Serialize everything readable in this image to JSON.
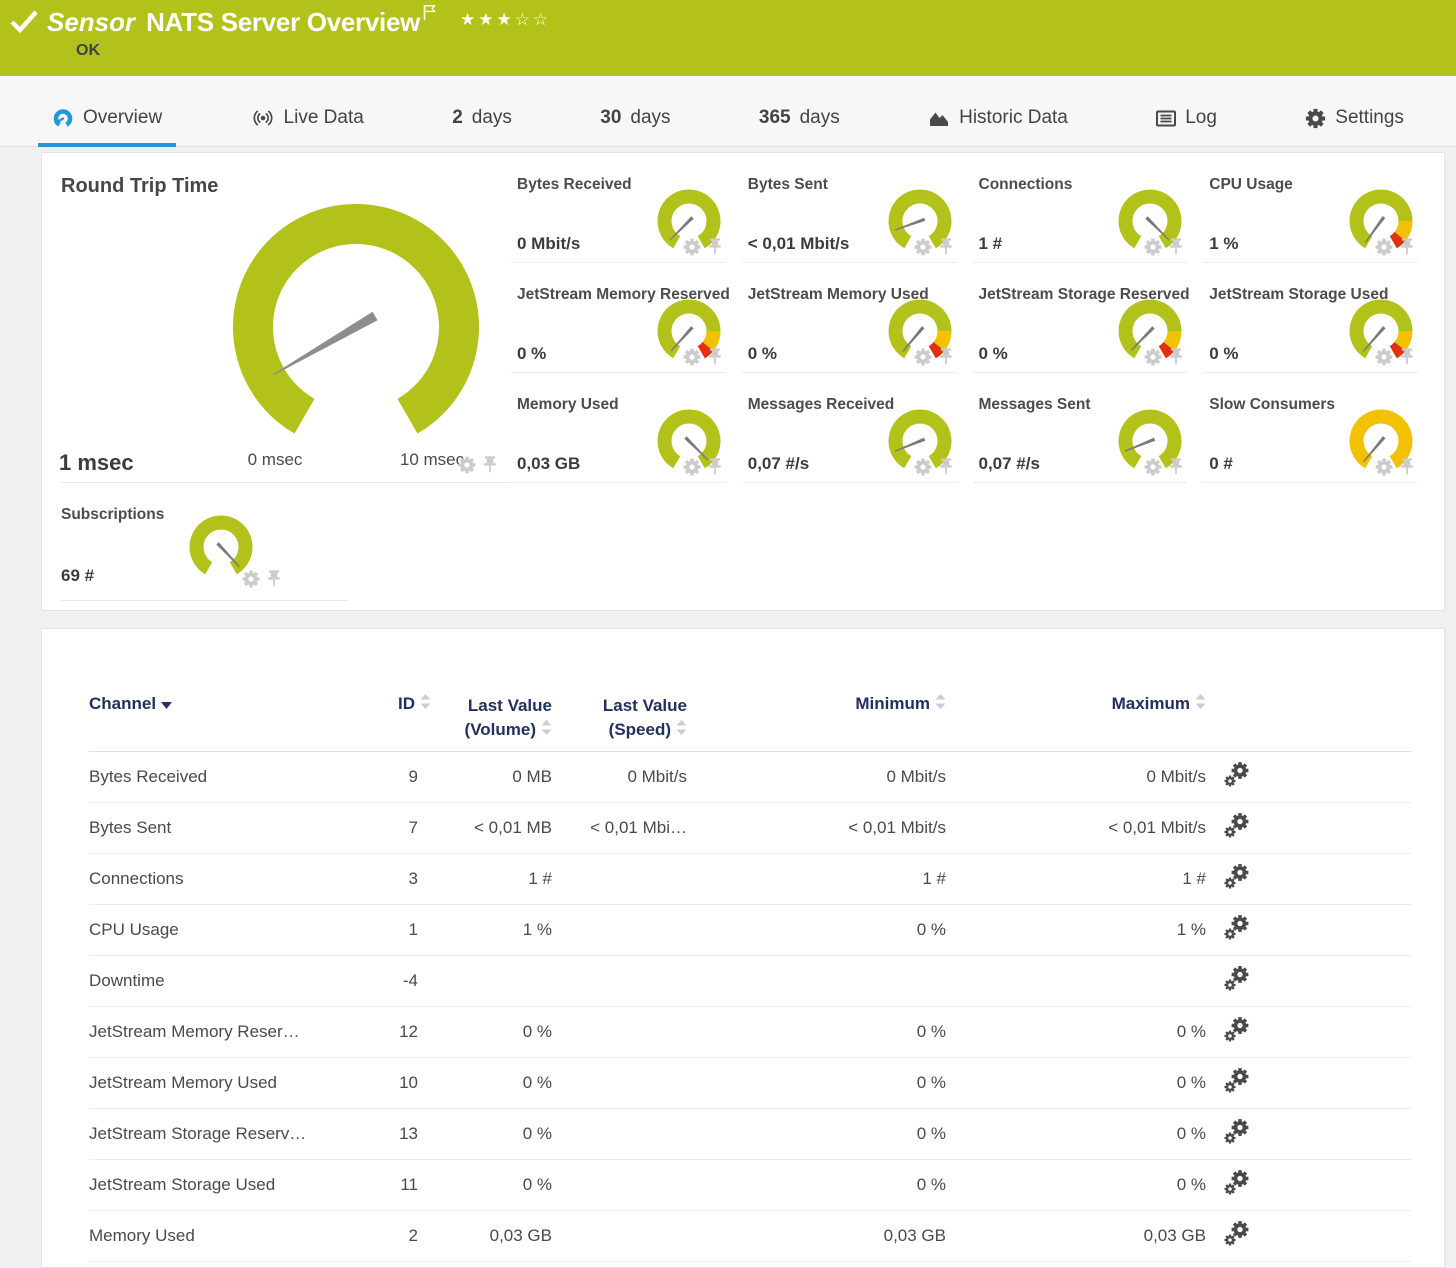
{
  "header": {
    "kind": "Sensor",
    "title": "NATS Server Overview",
    "stars": "★★★☆☆",
    "status": "OK"
  },
  "tabs": [
    {
      "id": "overview",
      "label": "Overview",
      "icon": "gauge-icon",
      "active": true
    },
    {
      "id": "live-data",
      "label": "Live Data",
      "icon": "broadcast-icon",
      "active": false
    },
    {
      "id": "2-days",
      "prefix": "2",
      "label": "days",
      "active": false
    },
    {
      "id": "30-days",
      "prefix": "30",
      "label": "days",
      "active": false
    },
    {
      "id": "365-days",
      "prefix": "365",
      "label": "days",
      "active": false
    },
    {
      "id": "historic-data",
      "label": "Historic Data",
      "icon": "area-chart-icon",
      "active": false
    },
    {
      "id": "log",
      "label": "Log",
      "icon": "log-icon",
      "active": false
    },
    {
      "id": "settings",
      "label": "Settings",
      "icon": "gear-icon",
      "active": false
    }
  ],
  "colors": {
    "brand_green": "#b2c21a",
    "tab_active_blue": "#1f9ad7",
    "warn_amber": "#f1c102",
    "alert_red": "#e03113",
    "needle_gray": "#7f7f7f"
  },
  "gauge_schemes": {
    "green": [
      {
        "color": "#b2c21a",
        "from": 0,
        "to": 1
      }
    ],
    "warn": [
      {
        "color": "#b2c21a",
        "from": 0,
        "to": 0.8
      },
      {
        "color": "#f1c102",
        "from": 0.8,
        "to": 0.93
      },
      {
        "color": "#e03113",
        "from": 0.93,
        "to": 1
      }
    ],
    "amber": [
      {
        "color": "#f1c102",
        "from": 0,
        "to": 1
      }
    ]
  },
  "gauge_panel": {
    "primary": {
      "title": "Round Trip Time",
      "value": "1 msec",
      "min_label": "0 msec",
      "max_label": "10 msec",
      "scheme": "green",
      "needle_deg": -120
    },
    "tiles": [
      {
        "title": "Bytes Received",
        "value": "0 Mbit/s",
        "scheme": "green",
        "needle_deg": -135
      },
      {
        "title": "Bytes Sent",
        "value": "< 0,01 Mbit/s",
        "scheme": "green",
        "needle_deg": -110
      },
      {
        "title": "Connections",
        "value": "1 #",
        "scheme": "green",
        "needle_deg": 135
      },
      {
        "title": "CPU Usage",
        "value": "1 %",
        "scheme": "warn",
        "needle_deg": -144
      },
      {
        "title": "JetStream Memory Reserved",
        "value": "0 %",
        "scheme": "warn",
        "needle_deg": -138
      },
      {
        "title": "JetStream Memory Used",
        "value": "0 %",
        "scheme": "warn",
        "needle_deg": -140
      },
      {
        "title": "JetStream Storage Reserved",
        "value": "0 %",
        "scheme": "warn",
        "needle_deg": -136
      },
      {
        "title": "JetStream Storage Used",
        "value": "0 %",
        "scheme": "warn",
        "needle_deg": -139
      },
      {
        "title": "Memory Used",
        "value": "0,03 GB",
        "scheme": "green",
        "needle_deg": 135
      },
      {
        "title": "Messages Received",
        "value": "0,07 #/s",
        "scheme": "green",
        "needle_deg": -112
      },
      {
        "title": "Messages Sent",
        "value": "0,07 #/s",
        "scheme": "green",
        "needle_deg": -112
      },
      {
        "title": "Slow Consumers",
        "value": "0 #",
        "scheme": "amber",
        "needle_deg": -140
      }
    ],
    "bottom_tile": {
      "title": "Subscriptions",
      "value": "69 #",
      "scheme": "green",
      "needle_deg": 137
    }
  },
  "table": {
    "columns": {
      "channel": "Channel",
      "id": "ID",
      "last_value_volume_line1": "Last Value",
      "last_value_volume_line2": "(Volume)",
      "last_value_speed_line1": "Last Value",
      "last_value_speed_line2": "(Speed)",
      "minimum": "Minimum",
      "maximum": "Maximum"
    },
    "rows": [
      {
        "channel": "Bytes Received",
        "id": "9",
        "last_volume": "0 MB",
        "last_speed": "0 Mbit/s",
        "minimum": "0 Mbit/s",
        "maximum": "0 Mbit/s"
      },
      {
        "channel": "Bytes Sent",
        "id": "7",
        "last_volume": "< 0,01 MB",
        "last_speed": "< 0,01 Mbi…",
        "minimum": "< 0,01 Mbit/s",
        "maximum": "< 0,01 Mbit/s"
      },
      {
        "channel": "Connections",
        "id": "3",
        "last_volume": "1 #",
        "last_speed": "",
        "minimum": "1 #",
        "maximum": "1 #"
      },
      {
        "channel": "CPU Usage",
        "id": "1",
        "last_volume": "1 %",
        "last_speed": "",
        "minimum": "0 %",
        "maximum": "1 %"
      },
      {
        "channel": "Downtime",
        "id": "-4",
        "last_volume": "",
        "last_speed": "",
        "minimum": "",
        "maximum": ""
      },
      {
        "channel": "JetStream Memory Reser…",
        "id": "12",
        "last_volume": "0 %",
        "last_speed": "",
        "minimum": "0 %",
        "maximum": "0 %"
      },
      {
        "channel": "JetStream Memory Used",
        "id": "10",
        "last_volume": "0 %",
        "last_speed": "",
        "minimum": "0 %",
        "maximum": "0 %"
      },
      {
        "channel": "JetStream Storage Reserv…",
        "id": "13",
        "last_volume": "0 %",
        "last_speed": "",
        "minimum": "0 %",
        "maximum": "0 %"
      },
      {
        "channel": "JetStream Storage Used",
        "id": "11",
        "last_volume": "0 %",
        "last_speed": "",
        "minimum": "0 %",
        "maximum": "0 %"
      },
      {
        "channel": "Memory Used",
        "id": "2",
        "last_volume": "0,03 GB",
        "last_speed": "",
        "minimum": "0,03 GB",
        "maximum": "0,03 GB"
      }
    ]
  }
}
